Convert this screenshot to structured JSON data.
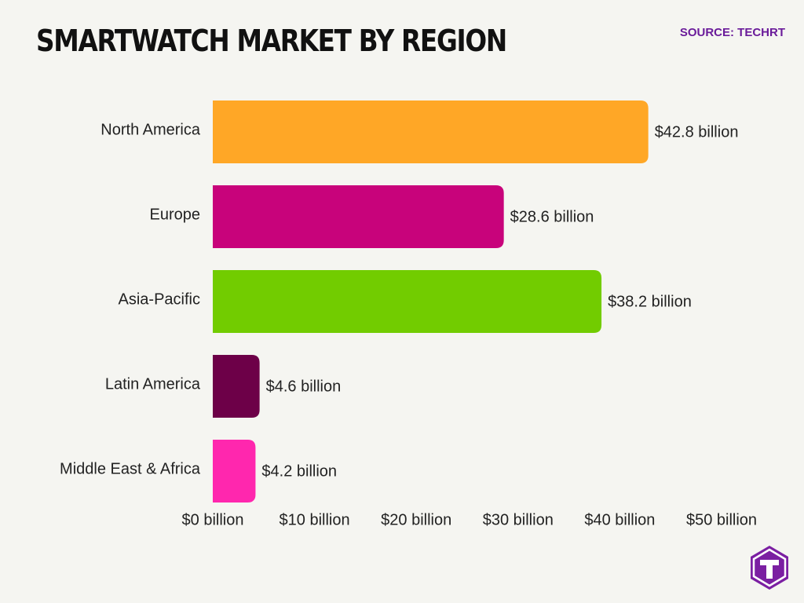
{
  "header": {
    "title": "SMARTWATCH MARKET BY REGION",
    "source": "SOURCE: TECHRT"
  },
  "brand": {
    "logo_icon": "techrt-t-logo",
    "logo_color": "#7b1fa2"
  },
  "chart_data": {
    "type": "bar",
    "orientation": "horizontal",
    "categories": [
      "North America",
      "Europe",
      "Asia-Pacific",
      "Latin America",
      "Middle East & Africa"
    ],
    "values": [
      42.8,
      28.6,
      38.2,
      4.6,
      4.2
    ],
    "value_labels": [
      "$42.8 billion",
      "$28.6 billion",
      "$38.2 billion",
      "$4.6 billion",
      "$4.2 billion"
    ],
    "colors": [
      "#ffa726",
      "#c8037b",
      "#72cc00",
      "#6d0048",
      "#ff27ae"
    ],
    "x_ticks": [
      0,
      10,
      20,
      30,
      40,
      50
    ],
    "x_tick_labels": [
      "$0 billion",
      "$10 billion",
      "$20 billion",
      "$30 billion",
      "$40 billion",
      "$50 billion"
    ],
    "xlim": [
      0,
      50
    ],
    "xlabel": "",
    "ylabel": "",
    "grid": false,
    "legend": "none"
  }
}
